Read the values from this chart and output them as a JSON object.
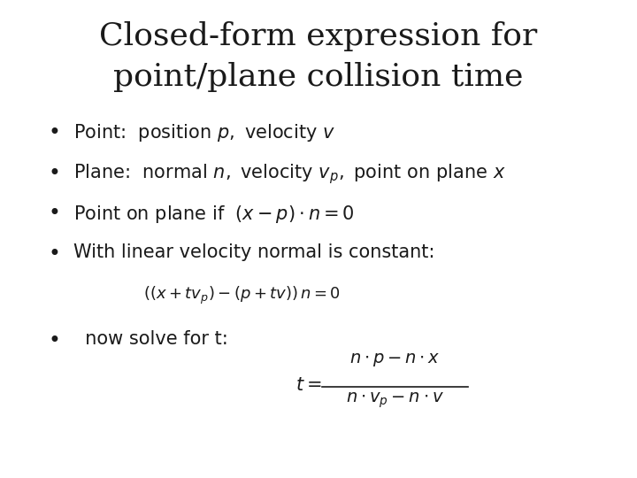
{
  "title_line1": "Closed-form expression for",
  "title_line2": "point/plane collision time",
  "background_color": "#ffffff",
  "text_color": "#1a1a1a",
  "title_fontsize": 26,
  "body_fontsize": 17,
  "math_fontsize": 15,
  "small_math_fontsize": 13,
  "bullet": "•",
  "fig_width": 7.2,
  "fig_height": 5.4,
  "dpi": 100
}
